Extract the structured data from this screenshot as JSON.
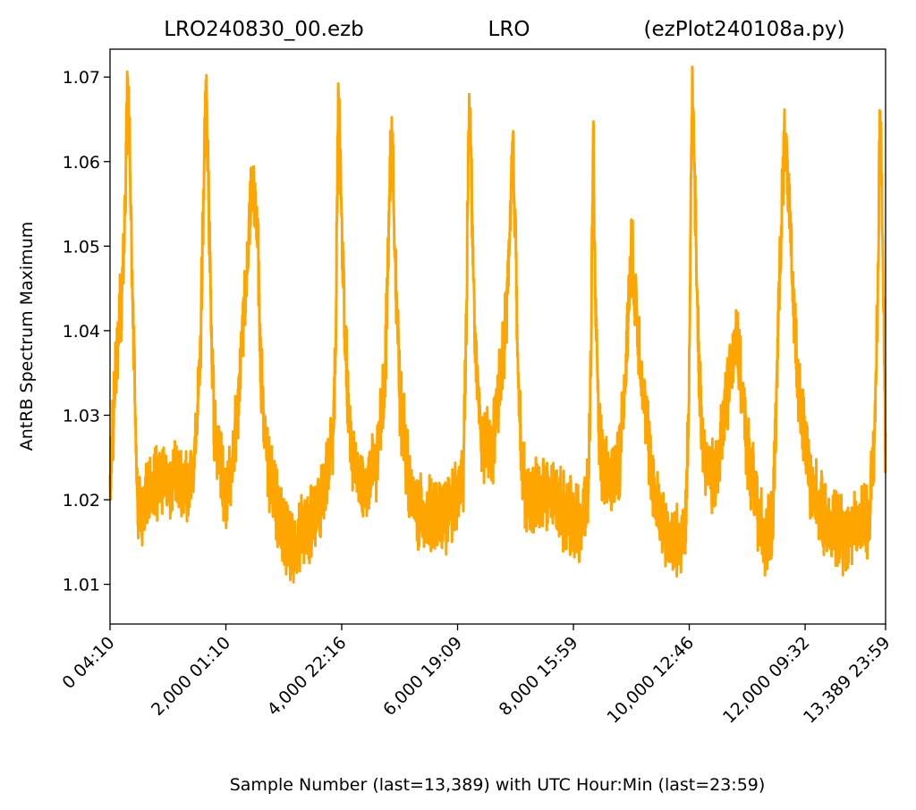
{
  "title": {
    "left": "LRO240830_00.ezb",
    "center": "LRO",
    "right": "(ezPlot240108a.py)"
  },
  "chart_data": {
    "type": "line",
    "xlabel": "Sample Number (last=13,389) with UTC Hour:Min (last=23:59)",
    "ylabel": "AntRB Spectrum Maximum",
    "xlim": [
      0,
      13389
    ],
    "ylim": [
      1.0053,
      1.0733
    ],
    "x_ticks": [
      {
        "value": 0,
        "label": "0  04:10"
      },
      {
        "value": 2000,
        "label": "2,000  01:10"
      },
      {
        "value": 4000,
        "label": "4,000  22:16"
      },
      {
        "value": 6000,
        "label": "6,000  19:09"
      },
      {
        "value": 8000,
        "label": "8,000  15:59"
      },
      {
        "value": 10000,
        "label": "10,000  12:46"
      },
      {
        "value": 12000,
        "label": "12,000  09:32"
      },
      {
        "value": 13389,
        "label": "13,389  23:59"
      }
    ],
    "y_ticks": [
      {
        "value": 1.01,
        "label": "1.01"
      },
      {
        "value": 1.02,
        "label": "1.02"
      },
      {
        "value": 1.03,
        "label": "1.03"
      },
      {
        "value": 1.04,
        "label": "1.04"
      },
      {
        "value": 1.05,
        "label": "1.05"
      },
      {
        "value": 1.06,
        "label": "1.06"
      },
      {
        "value": 1.07,
        "label": "1.07"
      }
    ],
    "grid": false,
    "series": [
      {
        "color": "#FFA500",
        "noise": 0.0035,
        "x": [
          0,
          100,
          220,
          270,
          300,
          340,
          380,
          420,
          460,
          520,
          600,
          750,
          900,
          1100,
          1300,
          1450,
          1550,
          1600,
          1660,
          1700,
          1740,
          1800,
          1900,
          2000,
          2100,
          2200,
          2350,
          2450,
          2550,
          2600,
          2700,
          2900,
          3100,
          3300,
          3500,
          3700,
          3850,
          3900,
          3940,
          3980,
          4050,
          4150,
          4400,
          4600,
          4750,
          4800,
          4860,
          4920,
          5000,
          5200,
          5400,
          5600,
          5750,
          5850,
          6000,
          6100,
          6150,
          6200,
          6250,
          6300,
          6400,
          6500,
          6600,
          6800,
          6900,
          6950,
          7000,
          7050,
          7100,
          7200,
          7300,
          7400,
          7500,
          7700,
          7900,
          8100,
          8250,
          8300,
          8340,
          8380,
          8420,
          8500,
          8650,
          8800,
          8900,
          9000,
          9200,
          9400,
          9600,
          9800,
          9950,
          10000,
          10050,
          10100,
          10150,
          10200,
          10300,
          10450,
          10600,
          10800,
          11000,
          11200,
          11350,
          11450,
          11500,
          11550,
          11650,
          11750,
          11900,
          12100,
          12300,
          12500,
          12700,
          12900,
          13100,
          13200,
          13260,
          13290,
          13320,
          13360,
          13389
        ],
        "y": [
          1.022,
          1.036,
          1.046,
          1.058,
          1.068,
          1.062,
          1.048,
          1.035,
          1.022,
          1.018,
          1.02,
          1.022,
          1.023,
          1.022,
          1.021,
          1.024,
          1.035,
          1.05,
          1.07,
          1.058,
          1.042,
          1.028,
          1.024,
          1.02,
          1.024,
          1.03,
          1.045,
          1.058,
          1.052,
          1.036,
          1.025,
          1.018,
          1.015,
          1.016,
          1.018,
          1.021,
          1.027,
          1.04,
          1.07,
          1.058,
          1.04,
          1.026,
          1.021,
          1.024,
          1.035,
          1.05,
          1.064,
          1.05,
          1.032,
          1.02,
          1.018,
          1.018,
          1.018,
          1.019,
          1.02,
          1.023,
          1.04,
          1.069,
          1.055,
          1.038,
          1.028,
          1.026,
          1.026,
          1.038,
          1.05,
          1.062,
          1.052,
          1.035,
          1.024,
          1.02,
          1.02,
          1.021,
          1.021,
          1.02,
          1.018,
          1.017,
          1.02,
          1.035,
          1.063,
          1.045,
          1.03,
          1.024,
          1.022,
          1.025,
          1.035,
          1.05,
          1.033,
          1.02,
          1.016,
          1.015,
          1.018,
          1.035,
          1.07,
          1.055,
          1.04,
          1.03,
          1.024,
          1.022,
          1.03,
          1.04,
          1.026,
          1.018,
          1.015,
          1.018,
          1.03,
          1.045,
          1.064,
          1.05,
          1.032,
          1.022,
          1.018,
          1.017,
          1.016,
          1.017,
          1.018,
          1.028,
          1.045,
          1.068,
          1.058,
          1.04,
          1.025
        ]
      }
    ]
  }
}
